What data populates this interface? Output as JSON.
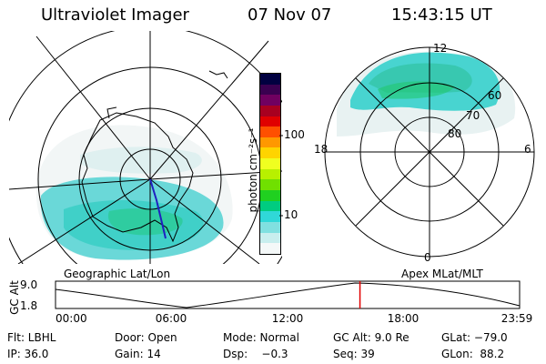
{
  "header": {
    "instrument": "Ultraviolet Imager",
    "date": "07 Nov 07",
    "time": "15:43:15 UT"
  },
  "colorbar": {
    "unit_label": "photon cm⁻²s⁻¹",
    "ticks": [
      "100",
      "10"
    ],
    "colors": [
      "#000040",
      "#3a0050",
      "#700060",
      "#a80020",
      "#e00000",
      "#ff5000",
      "#ff9800",
      "#ffd400",
      "#f0ff20",
      "#b8f000",
      "#70e000",
      "#20d020",
      "#00cc80",
      "#30d8d8",
      "#80e0e0",
      "#c8eeee",
      "#f4f8f8"
    ]
  },
  "left_panel": {
    "label": "Geographic Lat/Lon"
  },
  "right_panel": {
    "label": "Apex MLat/MLT",
    "lat_labels": [
      "60",
      "70",
      "80"
    ],
    "mlt_labels": {
      "top": "12",
      "left": "18",
      "right": "6",
      "bottom": "0"
    }
  },
  "altitude_strip": {
    "axis_label": "GC Alt",
    "y_ticks": [
      "9.0",
      "1.8"
    ],
    "x_ticks": [
      "00:00",
      "06:00",
      "12:00",
      "18:00",
      "23:59"
    ],
    "current_time_fraction": 0.656,
    "marker_color": "#e00000"
  },
  "info": {
    "row1": [
      "Flt: LBHL",
      "Door: Open",
      "Mode: Normal",
      "GC Alt: 9.0 Re",
      "GLat: −79.0"
    ],
    "row2": [
      "IP: 36.0",
      "Gain: 14",
      "Dsp:    −0.3",
      "Seq: 39",
      "GLon:  88.2"
    ]
  }
}
